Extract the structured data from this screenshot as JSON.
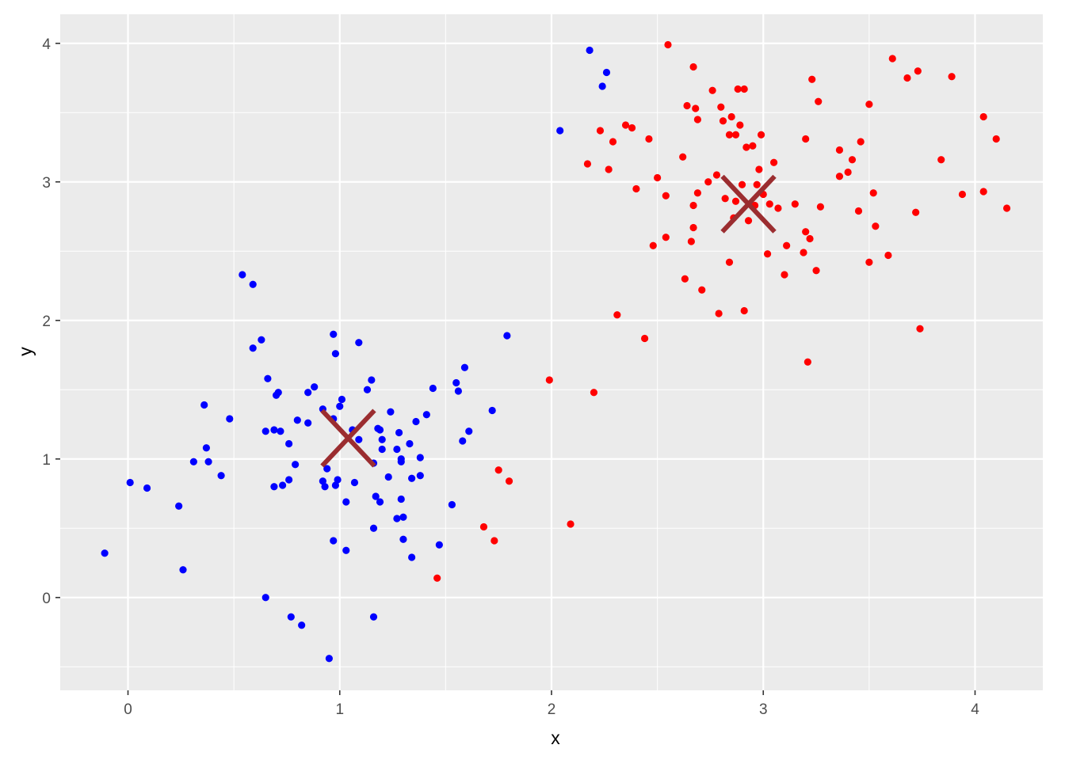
{
  "chart_data": {
    "type": "scatter",
    "title": "",
    "xlabel": "x",
    "ylabel": "y",
    "xlim": [
      -0.32,
      4.32
    ],
    "ylim": [
      -0.67,
      4.21
    ],
    "x_ticks": [
      0,
      1,
      2,
      3,
      4
    ],
    "x_tick_labels": [
      "0",
      "1",
      "2",
      "3",
      "4"
    ],
    "y_ticks": [
      0,
      1,
      2,
      3,
      4
    ],
    "y_tick_labels": [
      "0",
      "1",
      "2",
      "3",
      "4"
    ],
    "x_minor_ticks": [
      0.5,
      1.5,
      2.5,
      3.5
    ],
    "y_minor_ticks": [
      -0.5,
      0.5,
      1.5,
      2.5,
      3.5
    ],
    "grid": true,
    "legend": "none",
    "colors": {
      "panel_background": "#ebebeb",
      "grid": "#ffffff",
      "cluster_1": "#0000ff",
      "cluster_2": "#ff0000",
      "centroid": "#9b2d30"
    },
    "series": [
      {
        "color": "#0000ff",
        "points": [
          [
            -0.11,
            0.32
          ],
          [
            0.01,
            0.83
          ],
          [
            0.09,
            0.79
          ],
          [
            0.24,
            0.66
          ],
          [
            0.26,
            0.2
          ],
          [
            0.31,
            0.98
          ],
          [
            0.36,
            1.39
          ],
          [
            0.37,
            1.08
          ],
          [
            0.38,
            0.98
          ],
          [
            0.44,
            0.88
          ],
          [
            0.48,
            1.29
          ],
          [
            0.54,
            2.33
          ],
          [
            0.59,
            2.26
          ],
          [
            0.59,
            1.8
          ],
          [
            0.63,
            1.86
          ],
          [
            0.65,
            1.2
          ],
          [
            0.65,
            0.0
          ],
          [
            0.66,
            1.58
          ],
          [
            0.69,
            1.21
          ],
          [
            0.69,
            0.8
          ],
          [
            0.7,
            1.46
          ],
          [
            0.71,
            1.48
          ],
          [
            0.72,
            1.2
          ],
          [
            0.73,
            0.81
          ],
          [
            0.76,
            1.11
          ],
          [
            0.76,
            0.85
          ],
          [
            0.77,
            -0.14
          ],
          [
            0.79,
            0.96
          ],
          [
            0.8,
            1.28
          ],
          [
            0.82,
            -0.2
          ],
          [
            0.85,
            1.48
          ],
          [
            0.85,
            1.26
          ],
          [
            0.88,
            1.52
          ],
          [
            0.92,
            1.36
          ],
          [
            0.92,
            0.84
          ],
          [
            0.93,
            0.8
          ],
          [
            0.94,
            0.93
          ],
          [
            0.95,
            -0.44
          ],
          [
            0.97,
            1.9
          ],
          [
            0.97,
            1.29
          ],
          [
            0.97,
            0.41
          ],
          [
            0.98,
            1.76
          ],
          [
            0.98,
            0.81
          ],
          [
            0.99,
            0.85
          ],
          [
            1.0,
            1.38
          ],
          [
            1.01,
            1.43
          ],
          [
            1.03,
            0.69
          ],
          [
            1.03,
            0.34
          ],
          [
            1.06,
            1.21
          ],
          [
            1.07,
            0.83
          ],
          [
            1.09,
            1.84
          ],
          [
            1.09,
            1.14
          ],
          [
            1.13,
            1.5
          ],
          [
            1.15,
            1.57
          ],
          [
            1.16,
            0.97
          ],
          [
            1.16,
            0.5
          ],
          [
            1.16,
            -0.14
          ],
          [
            1.17,
            0.73
          ],
          [
            1.18,
            1.22
          ],
          [
            1.19,
            1.21
          ],
          [
            1.19,
            0.69
          ],
          [
            1.2,
            1.14
          ],
          [
            1.2,
            1.07
          ],
          [
            1.23,
            0.87
          ],
          [
            1.24,
            1.34
          ],
          [
            1.27,
            1.07
          ],
          [
            1.27,
            0.57
          ],
          [
            1.28,
            1.19
          ],
          [
            1.29,
            1.0
          ],
          [
            1.29,
            0.98
          ],
          [
            1.29,
            0.71
          ],
          [
            1.3,
            0.58
          ],
          [
            1.3,
            0.42
          ],
          [
            1.33,
            1.11
          ],
          [
            1.34,
            0.86
          ],
          [
            1.34,
            0.29
          ],
          [
            1.36,
            1.27
          ],
          [
            1.38,
            1.01
          ],
          [
            1.38,
            0.88
          ],
          [
            1.41,
            1.32
          ],
          [
            1.44,
            1.51
          ],
          [
            1.47,
            0.38
          ],
          [
            1.53,
            0.67
          ],
          [
            1.55,
            1.55
          ],
          [
            1.56,
            1.49
          ],
          [
            1.58,
            1.13
          ],
          [
            1.59,
            1.66
          ],
          [
            1.61,
            1.2
          ],
          [
            1.72,
            1.35
          ],
          [
            1.79,
            1.89
          ],
          [
            2.04,
            3.37
          ],
          [
            2.18,
            3.95
          ],
          [
            2.24,
            3.69
          ],
          [
            2.26,
            3.79
          ]
        ]
      },
      {
        "color": "#ff0000",
        "points": [
          [
            1.46,
            0.14
          ],
          [
            1.68,
            0.51
          ],
          [
            1.73,
            0.41
          ],
          [
            1.75,
            0.92
          ],
          [
            1.8,
            0.84
          ],
          [
            1.99,
            1.57
          ],
          [
            2.09,
            0.53
          ],
          [
            2.2,
            1.48
          ],
          [
            2.17,
            3.13
          ],
          [
            2.23,
            3.37
          ],
          [
            2.27,
            3.09
          ],
          [
            2.29,
            3.29
          ],
          [
            2.31,
            2.04
          ],
          [
            2.35,
            3.41
          ],
          [
            2.38,
            3.39
          ],
          [
            2.4,
            2.95
          ],
          [
            2.44,
            1.87
          ],
          [
            2.46,
            3.31
          ],
          [
            2.48,
            2.54
          ],
          [
            2.5,
            3.03
          ],
          [
            2.54,
            2.9
          ],
          [
            2.54,
            2.6
          ],
          [
            2.55,
            3.99
          ],
          [
            2.62,
            3.18
          ],
          [
            2.63,
            2.3
          ],
          [
            2.64,
            3.55
          ],
          [
            2.66,
            2.57
          ],
          [
            2.67,
            2.83
          ],
          [
            2.67,
            2.67
          ],
          [
            2.67,
            3.83
          ],
          [
            2.68,
            3.53
          ],
          [
            2.69,
            3.45
          ],
          [
            2.69,
            2.92
          ],
          [
            2.71,
            2.22
          ],
          [
            2.74,
            3.0
          ],
          [
            2.76,
            3.66
          ],
          [
            2.78,
            3.05
          ],
          [
            2.79,
            2.05
          ],
          [
            2.8,
            3.54
          ],
          [
            2.81,
            3.44
          ],
          [
            2.82,
            2.88
          ],
          [
            2.84,
            2.42
          ],
          [
            2.84,
            3.34
          ],
          [
            2.85,
            3.47
          ],
          [
            2.86,
            2.74
          ],
          [
            2.87,
            3.34
          ],
          [
            2.87,
            2.86
          ],
          [
            2.88,
            3.67
          ],
          [
            2.89,
            3.41
          ],
          [
            2.9,
            2.98
          ],
          [
            2.91,
            3.67
          ],
          [
            2.91,
            2.07
          ],
          [
            2.92,
            3.25
          ],
          [
            2.93,
            2.72
          ],
          [
            2.95,
            3.26
          ],
          [
            2.96,
            2.83
          ],
          [
            2.97,
            2.98
          ],
          [
            2.98,
            3.09
          ],
          [
            2.99,
            3.34
          ],
          [
            3.0,
            2.91
          ],
          [
            3.02,
            2.48
          ],
          [
            3.03,
            2.84
          ],
          [
            3.05,
            3.14
          ],
          [
            3.07,
            2.81
          ],
          [
            3.1,
            2.33
          ],
          [
            3.11,
            2.54
          ],
          [
            3.15,
            2.84
          ],
          [
            3.19,
            2.49
          ],
          [
            3.2,
            2.64
          ],
          [
            3.2,
            3.31
          ],
          [
            3.21,
            1.7
          ],
          [
            3.22,
            2.59
          ],
          [
            3.23,
            3.74
          ],
          [
            3.25,
            2.36
          ],
          [
            3.26,
            3.58
          ],
          [
            3.27,
            2.82
          ],
          [
            3.36,
            3.23
          ],
          [
            3.36,
            3.04
          ],
          [
            3.4,
            3.07
          ],
          [
            3.42,
            3.16
          ],
          [
            3.45,
            2.79
          ],
          [
            3.46,
            3.29
          ],
          [
            3.5,
            3.56
          ],
          [
            3.5,
            2.42
          ],
          [
            3.52,
            2.92
          ],
          [
            3.53,
            2.68
          ],
          [
            3.59,
            2.47
          ],
          [
            3.61,
            3.89
          ],
          [
            3.68,
            3.75
          ],
          [
            3.72,
            2.78
          ],
          [
            3.73,
            3.8
          ],
          [
            3.74,
            1.94
          ],
          [
            3.84,
            3.16
          ],
          [
            3.89,
            3.76
          ],
          [
            3.94,
            2.91
          ],
          [
            4.04,
            3.47
          ],
          [
            4.04,
            2.93
          ],
          [
            4.1,
            3.31
          ],
          [
            4.15,
            2.81
          ]
        ]
      }
    ],
    "centroids": [
      {
        "x": 1.04,
        "y": 1.15,
        "color": "#9b2d30"
      },
      {
        "x": 2.93,
        "y": 2.84,
        "color": "#9b2d30"
      }
    ]
  }
}
